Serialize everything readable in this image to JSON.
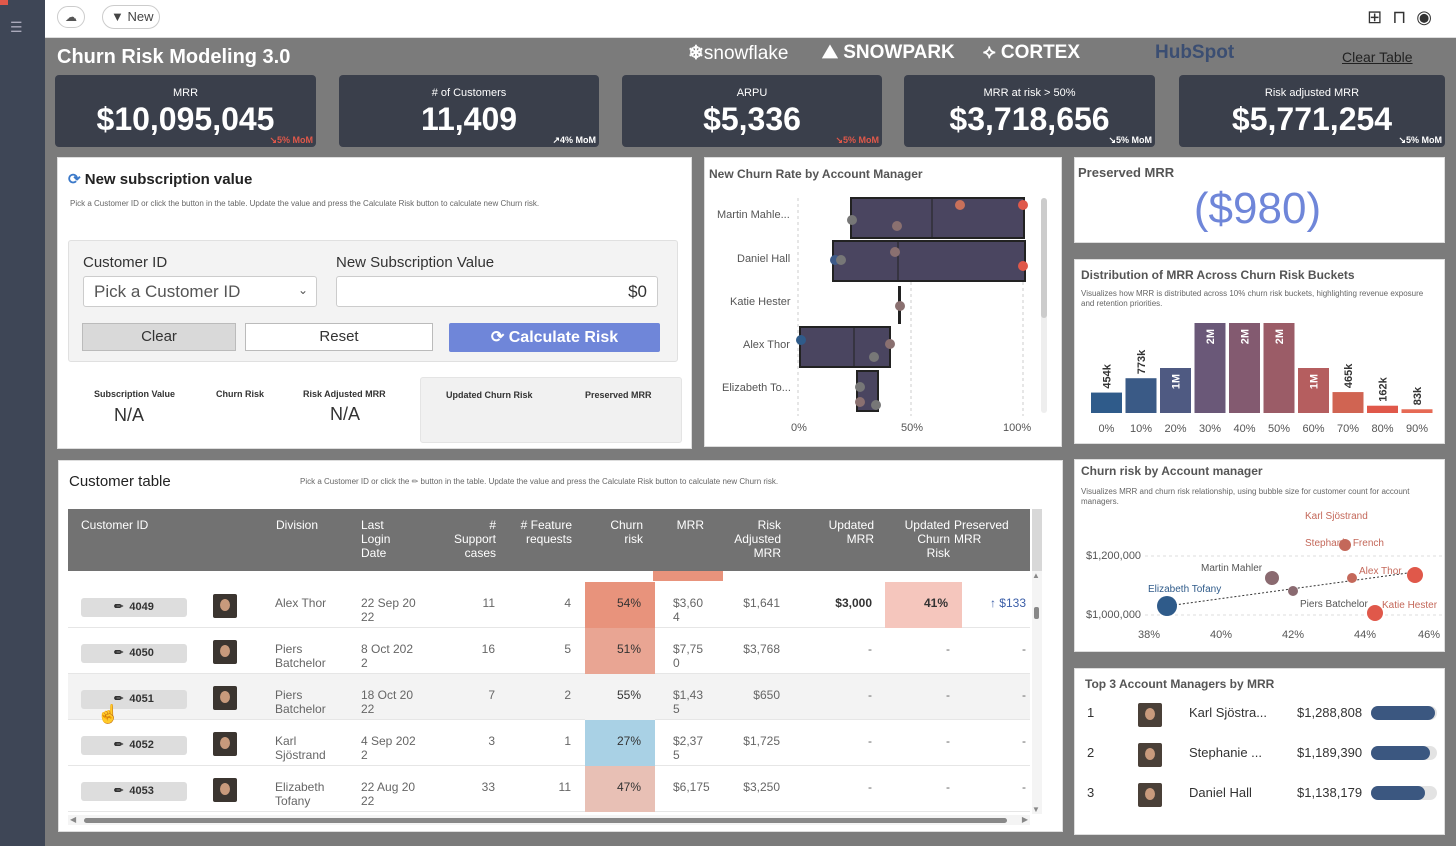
{
  "header": {
    "new_label": "New",
    "clear_table": "Clear Table"
  },
  "dashboard": {
    "title": "Churn Risk Modeling 3.0",
    "logos": [
      "snowflake",
      "SNOWPARK",
      "CORTEX",
      "HubSpot"
    ]
  },
  "kpis": [
    {
      "label": "MRR",
      "value": "$10,095,045",
      "mom": "↘5% MoM",
      "up": false
    },
    {
      "label": "# of Customers",
      "value": "11,409",
      "mom": "↗4% MoM",
      "up": true
    },
    {
      "label": "ARPU",
      "value": "$5,336",
      "mom": "↘5% MoM",
      "up": false
    },
    {
      "label": "MRR at risk > 50%",
      "value": "$3,718,656",
      "mom": "↘5% MoM",
      "up": true
    },
    {
      "label": "Risk adjusted MRR",
      "value": "$5,771,254",
      "mom": "↘5% MoM",
      "up": true
    }
  ],
  "newsub": {
    "title": "New subscription value",
    "desc": "Pick a Customer ID or click the button in the table. Update the value and press the Calculate Risk button to calculate new Churn risk.",
    "customer_id_label": "Customer ID",
    "customer_placeholder": "Pick a Customer ID",
    "new_value_label": "New Subscription Value",
    "new_value": "$0",
    "clear": "Clear",
    "reset": "Reset",
    "calculate": "Calculate Risk",
    "sub_value_label": "Subscription Value",
    "sub_value": "N/A",
    "churn_risk_label": "Churn Risk",
    "risk_adj_label": "Risk Adjusted MRR",
    "risk_adj_value": "N/A",
    "updated_churn_label": "Updated Churn Risk",
    "preserved_label": "Preserved MRR"
  },
  "boxplot": {
    "title": "New Churn Rate by Account Manager",
    "managers": [
      "Martin Mahle...",
      "Daniel Hall",
      "Katie Hester",
      "Alex Thor",
      "Elizabeth To..."
    ],
    "ticks": [
      "0%",
      "50%",
      "100%"
    ]
  },
  "preserved": {
    "title": "Preserved MRR",
    "value": "($980)"
  },
  "chart_data": {
    "type": "bar",
    "title": "Distribution of MRR Across Churn Risk Buckets",
    "subtitle": "Visualizes how MRR is distributed across 10% churn risk buckets, highlighting revenue exposure and retention priorities.",
    "categories": [
      "0%",
      "10%",
      "20%",
      "30%",
      "40%",
      "50%",
      "60%",
      "70%",
      "80%",
      "90%"
    ],
    "values": [
      454,
      773,
      1000,
      2000,
      2000,
      2000,
      1000,
      465,
      162,
      83
    ],
    "labels": [
      "454k",
      "773k",
      "1M",
      "2M",
      "2M",
      "2M",
      "1M",
      "465k",
      "162k",
      "83k"
    ],
    "colors": [
      "#2f5b8a",
      "#3a5a86",
      "#4f5a82",
      "#6a5878",
      "#835a70",
      "#9b5c67",
      "#b55e5f",
      "#d06452",
      "#e0584a",
      "#e66a55"
    ]
  },
  "bubble": {
    "title": "Churn risk by Account manager",
    "desc": "Visualizes MRR and churn risk relationship, using bubble size for customer count for account managers.",
    "yticks": [
      "$1,200,000",
      "$1,000,000"
    ],
    "xticks": [
      "38%",
      "40%",
      "42%",
      "44%",
      "46%"
    ],
    "names": [
      "Karl Sjöstrand",
      "Stephanie French",
      "Martin Mahler",
      "Alex Thor",
      "Elizabeth Tofany",
      "Piers Batchelor",
      "Katie Hester"
    ]
  },
  "top3": {
    "title": "Top 3 Account Managers by MRR",
    "rows": [
      {
        "rank": "1",
        "name": "Karl Sjöstra...",
        "value": "$1,288,808",
        "pct": 100
      },
      {
        "rank": "2",
        "name": "Stephanie ...",
        "value": "$1,189,390",
        "pct": 92
      },
      {
        "rank": "3",
        "name": "Daniel Hall",
        "value": "$1,138,179",
        "pct": 85
      }
    ]
  },
  "table": {
    "title": "Customer table",
    "desc": "Pick a Customer ID or click the ✏ button in the table. Update the value and press the Calculate Risk button to calculate new Churn risk.",
    "headers": [
      "Customer ID",
      "Division",
      "Last Login Date",
      "# Support cases",
      "# Feature requests",
      "Churn risk",
      "MRR",
      "Risk Adjusted MRR",
      "Updated MRR",
      "Updated Churn Risk",
      "Preserved MRR"
    ],
    "rows": [
      {
        "id": "4049",
        "division": "Alex Thor",
        "login": "22 Sep 20 22",
        "support": "11",
        "feature": "4",
        "churn": "54%",
        "mrr": "$3,60 4",
        "radj": "$1,641",
        "umrr": "$3,000",
        "uchurn": "41%",
        "pres": "↑ $133",
        "color": "#e8937c"
      },
      {
        "id": "4050",
        "division": "Piers Batchelor",
        "login": "8 Oct 202 2",
        "support": "16",
        "feature": "5",
        "churn": "51%",
        "mrr": "$7,75 0",
        "radj": "$3,768",
        "umrr": "-",
        "uchurn": "-",
        "pres": "-",
        "color": "#e9a593"
      },
      {
        "id": "4051",
        "division": "Piers Batchelor",
        "login": "18 Oct 20 22",
        "support": "7",
        "feature": "2",
        "churn": "55%",
        "mrr": "$1,43 5",
        "radj": "$650",
        "umrr": "-",
        "uchurn": "-",
        "pres": "-",
        "color": "#f3f3f3"
      },
      {
        "id": "4052",
        "division": "Karl Sjöstrand",
        "login": "4 Sep 202 2",
        "support": "3",
        "feature": "1",
        "churn": "27%",
        "mrr": "$2,37 5",
        "radj": "$1,725",
        "umrr": "-",
        "uchurn": "-",
        "pres": "-",
        "color": "#a9d1e5"
      },
      {
        "id": "4053",
        "division": "Elizabeth Tofany",
        "login": "22 Aug 20 22",
        "support": "33",
        "feature": "11",
        "churn": "47%",
        "mrr": "$6,175",
        "radj": "$3,250",
        "umrr": "-",
        "uchurn": "-",
        "pres": "-",
        "color": "#e8c0b5"
      }
    ]
  }
}
